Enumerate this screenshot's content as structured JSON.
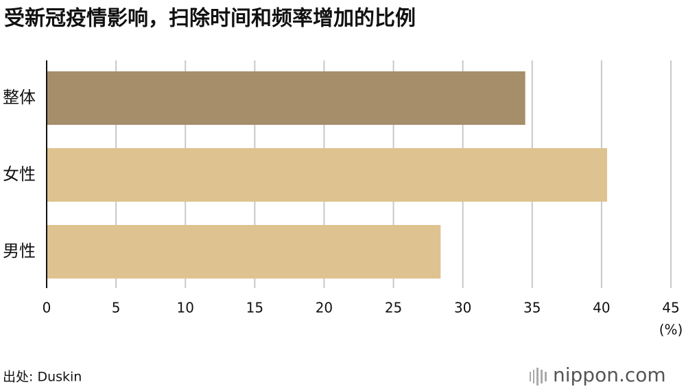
{
  "chart_data": {
    "type": "bar",
    "orientation": "horizontal",
    "title": "受新冠疫情影响，扫除时间和频率增加的比例",
    "categories": [
      "整体",
      "女性",
      "男性"
    ],
    "values": [
      34.5,
      40.4,
      28.4
    ],
    "colors": [
      "#a68e6b",
      "#dec28f",
      "#dec28f"
    ],
    "xlim": [
      0,
      45
    ],
    "xticks": [
      0,
      5,
      10,
      15,
      20,
      25,
      30,
      35,
      40,
      45
    ],
    "x_unit": "(%)",
    "grid": true,
    "source": "出处: Duskin",
    "logo": "nippon.com"
  }
}
